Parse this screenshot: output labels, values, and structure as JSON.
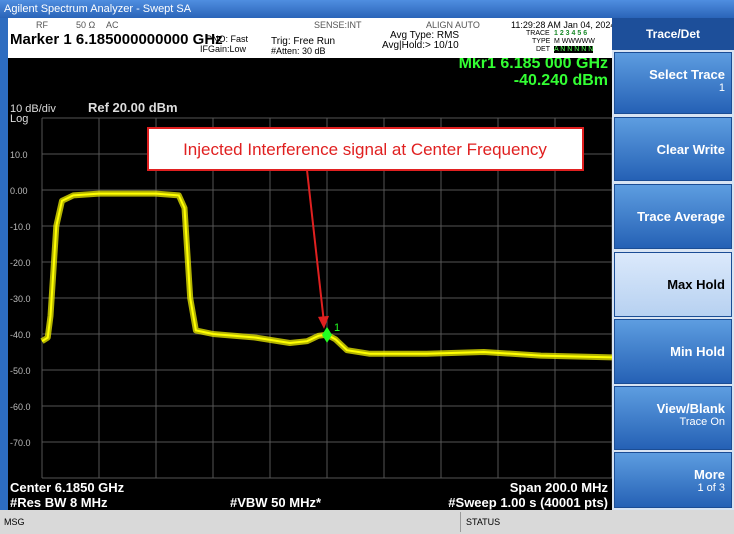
{
  "title_bar": "Agilent Spectrum Analyzer - Swept SA",
  "status_row": {
    "rf": "RF",
    "impedance": "50 Ω",
    "coupling": "AC",
    "sense": "SENSE:INT",
    "align": "ALIGN AUTO",
    "datetime": "11:29:28 AM Jan 04, 2024"
  },
  "header": {
    "marker": "Marker 1 6.185000000000 GHz",
    "pno": "PNO: Fast",
    "ifgain": "IFGain:Low",
    "trig": "Trig: Free Run",
    "atten": "#Atten: 30 dB",
    "avg_type": "Avg Type: RMS",
    "avg_hold": "Avg|Hold:> 10/10",
    "trace_label": "TRACE",
    "trace_value": "1 2 3 4 5 6",
    "type_label": "TYPE",
    "type_value": "M WWWWW",
    "det_label": "DET",
    "det_value": "A N N N N N"
  },
  "display": {
    "mkr_freq": "Mkr1 6.185 000 GHz",
    "mkr_amp": "-40.240 dBm",
    "scale": "10 dB/div",
    "ref": "Ref 20.00 dBm",
    "log": "Log",
    "y_labels": [
      "10.0",
      "0.00",
      "-10.0",
      "-20.0",
      "-30.0",
      "-40.0",
      "-50.0",
      "-60.0",
      "-70.0"
    ],
    "annotation": "Injected Interference signal at Center Frequency",
    "marker_label": "1",
    "center": "Center 6.1850 GHz",
    "span": "Span 200.0 MHz",
    "rbw": "#Res BW 8 MHz",
    "vbw": "#VBW 50 MHz*",
    "sweep": "#Sweep  1.00 s (40001 pts)",
    "xlim": [
      6085,
      6285
    ],
    "ylim": [
      -80,
      20
    ],
    "trace": {
      "x": [
        6085,
        6087,
        6088,
        6090,
        6092,
        6096,
        6105,
        6115,
        6125,
        6133,
        6135,
        6137,
        6139,
        6145,
        6160,
        6172,
        6178,
        6182,
        6185,
        6188,
        6192,
        6200,
        6220,
        6240,
        6260,
        6285
      ],
      "y": [
        -42,
        -41,
        -35,
        -10,
        -3,
        -1.5,
        -1,
        -1,
        -1,
        -1.5,
        -5,
        -30,
        -39,
        -40,
        -41,
        -42.5,
        -42,
        -40.5,
        -40.2,
        -41.5,
        -44.5,
        -45.5,
        -45.5,
        -45,
        -46,
        -46.5
      ]
    },
    "marker": {
      "x": 6185,
      "y": -40.24
    }
  },
  "footer": {
    "msg": "MSG",
    "status": "STATUS"
  },
  "softkeys": {
    "menu": "Trace/Det",
    "keys": [
      [
        "Select Trace",
        "1"
      ],
      [
        "Clear Write"
      ],
      [
        "Trace Average"
      ],
      [
        "Max Hold"
      ],
      [
        "Min Hold"
      ],
      [
        "View/Blank",
        "Trace On"
      ],
      [
        "More",
        "1 of 3"
      ]
    ]
  }
}
